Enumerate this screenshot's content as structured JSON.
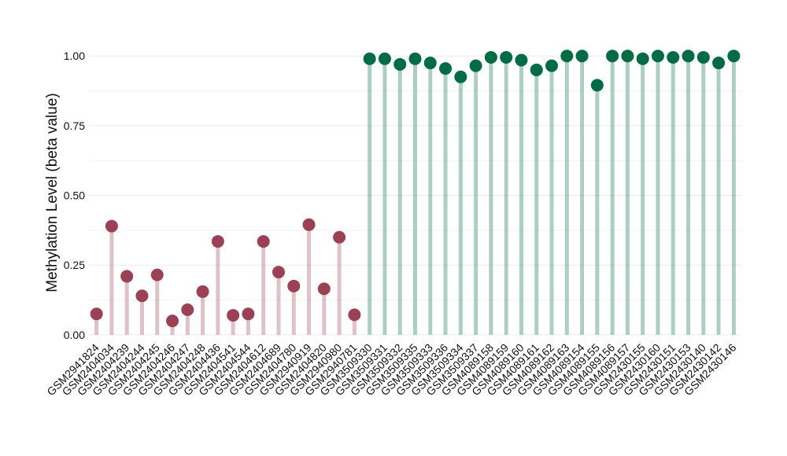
{
  "chart_data": {
    "type": "lollipop",
    "y_label": "Methylation Level (beta value)",
    "categories": [
      "GSM2941824",
      "GSM2404034",
      "GSM2404239",
      "GSM2404244",
      "GSM2404245",
      "GSM2404246",
      "GSM2404247",
      "GSM2404248",
      "GSM2404436",
      "GSM2404541",
      "GSM2404544",
      "GSM2404612",
      "GSM2404689",
      "GSM2404780",
      "GSM2940919",
      "GSM2404820",
      "GSM2940980",
      "GSM2940781",
      "GSM3509330",
      "GSM3509331",
      "GSM3509332",
      "GSM3509335",
      "GSM3509333",
      "GSM3509336",
      "GSM3509334",
      "GSM3509337",
      "GSM4089158",
      "GSM4089159",
      "GSM4089160",
      "GSM4089161",
      "GSM4089162",
      "GSM4089163",
      "GSM4089154",
      "GSM4089155",
      "GSM4089156",
      "GSM4089157",
      "GSM2430155",
      "GSM2430160",
      "GSM2430151",
      "GSM2430153",
      "GSM2430140",
      "GSM2430142",
      "GSM2430146"
    ],
    "values": [
      0.075,
      0.39,
      0.21,
      0.14,
      0.215,
      0.05,
      0.09,
      0.155,
      0.335,
      0.07,
      0.075,
      0.335,
      0.225,
      0.175,
      0.395,
      0.165,
      0.35,
      0.072,
      0.99,
      0.99,
      0.97,
      0.99,
      0.975,
      0.955,
      0.925,
      0.965,
      0.995,
      0.995,
      0.985,
      0.95,
      0.965,
      1.0,
      1.0,
      0.895,
      1.0,
      1.0,
      0.99,
      1.0,
      0.995,
      1.0,
      0.995,
      0.975,
      1.0
    ],
    "colors": [
      "#9b4155",
      "#9b4155",
      "#9b4155",
      "#9b4155",
      "#9b4155",
      "#9b4155",
      "#9b4155",
      "#9b4155",
      "#9b4155",
      "#9b4155",
      "#9b4155",
      "#9b4155",
      "#9b4155",
      "#9b4155",
      "#9b4155",
      "#9b4155",
      "#9b4155",
      "#9b4155",
      "#006b45",
      "#006b45",
      "#006b45",
      "#006b45",
      "#006b45",
      "#006b45",
      "#006b45",
      "#006b45",
      "#006b45",
      "#006b45",
      "#006b45",
      "#006b45",
      "#006b45",
      "#006b45",
      "#006b45",
      "#006b45",
      "#006b45",
      "#006b45",
      "#006b45",
      "#006b45",
      "#006b45",
      "#006b45",
      "#006b45",
      "#006b45",
      "#006b45"
    ],
    "ylim": [
      -0.02,
      1.04
    ],
    "yticks": [
      {
        "value": 0,
        "label": "0.00"
      },
      {
        "value": 0.25,
        "label": "0.25"
      },
      {
        "value": 0.5,
        "label": "0.50"
      },
      {
        "value": 0.75,
        "label": "0.75"
      },
      {
        "value": 1,
        "label": "1.00"
      }
    ],
    "grid": true
  }
}
